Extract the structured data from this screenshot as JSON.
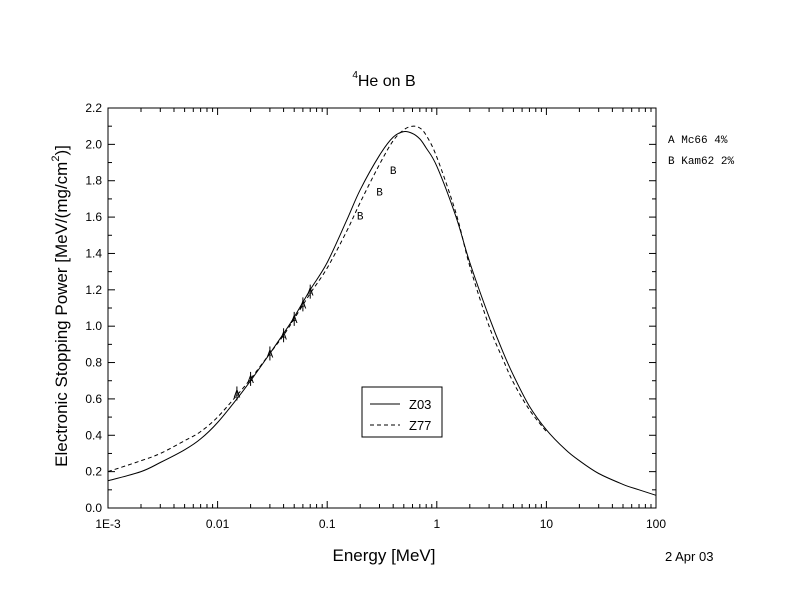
{
  "chart_data": {
    "type": "line",
    "title_sup": "4",
    "title_main": "He on B",
    "xlabel": "Energy [MeV]",
    "ylabel_main": "Electronic Stopping Power [MeV/(mg/cm",
    "ylabel_sup": "2",
    "ylabel_close": ")]",
    "x_scale": "log",
    "xlim": [
      0.001,
      100
    ],
    "ylim": [
      0.0,
      2.2
    ],
    "x_ticks": [
      {
        "value": 0.001,
        "label": "1E-3"
      },
      {
        "value": 0.01,
        "label": "0.01"
      },
      {
        "value": 0.1,
        "label": "0.1"
      },
      {
        "value": 1,
        "label": "1"
      },
      {
        "value": 10,
        "label": "10"
      },
      {
        "value": 100,
        "label": "100"
      }
    ],
    "y_ticks": [
      {
        "value": 0.0,
        "label": "0.0"
      },
      {
        "value": 0.2,
        "label": "0.2"
      },
      {
        "value": 0.4,
        "label": "0.4"
      },
      {
        "value": 0.6,
        "label": "0.6"
      },
      {
        "value": 0.8,
        "label": "0.8"
      },
      {
        "value": 1.0,
        "label": "1.0"
      },
      {
        "value": 1.2,
        "label": "1.2"
      },
      {
        "value": 1.4,
        "label": "1.4"
      },
      {
        "value": 1.6,
        "label": "1.6"
      },
      {
        "value": 1.8,
        "label": "1.8"
      },
      {
        "value": 2.0,
        "label": "2.0"
      },
      {
        "value": 2.2,
        "label": "2.2"
      }
    ],
    "grid": false,
    "legend_position": "bottom-center",
    "series": [
      {
        "name": "Z03",
        "style": "solid",
        "x": [
          0.001,
          0.002,
          0.003,
          0.005,
          0.007,
          0.01,
          0.015,
          0.02,
          0.03,
          0.04,
          0.05,
          0.07,
          0.1,
          0.15,
          0.2,
          0.3,
          0.4,
          0.5,
          0.6,
          0.7,
          0.8,
          1,
          1.5,
          2,
          3,
          4,
          5,
          7,
          10,
          15,
          20,
          30,
          50,
          70,
          100
        ],
        "y": [
          0.15,
          0.2,
          0.25,
          0.32,
          0.38,
          0.47,
          0.6,
          0.7,
          0.85,
          0.96,
          1.05,
          1.2,
          1.35,
          1.58,
          1.75,
          1.94,
          2.04,
          2.07,
          2.06,
          2.03,
          1.98,
          1.88,
          1.6,
          1.35,
          1.05,
          0.86,
          0.73,
          0.56,
          0.43,
          0.32,
          0.26,
          0.19,
          0.13,
          0.1,
          0.07
        ]
      },
      {
        "name": "Z77",
        "style": "dashed",
        "x": [
          0.001,
          0.002,
          0.003,
          0.005,
          0.007,
          0.01,
          0.015,
          0.02,
          0.03,
          0.04,
          0.05,
          0.07,
          0.1,
          0.15,
          0.2,
          0.3,
          0.4,
          0.5,
          0.6,
          0.7,
          0.8,
          1,
          1.5,
          2,
          3,
          4,
          5,
          7,
          10
        ],
        "y": [
          0.2,
          0.26,
          0.3,
          0.37,
          0.42,
          0.5,
          0.62,
          0.71,
          0.85,
          0.95,
          1.04,
          1.18,
          1.32,
          1.52,
          1.68,
          1.89,
          2.02,
          2.08,
          2.1,
          2.09,
          2.05,
          1.93,
          1.62,
          1.33,
          1.0,
          0.82,
          0.69,
          0.54,
          0.42
        ]
      }
    ],
    "data_points": [
      {
        "dataset": "A",
        "x": 0.015,
        "y": 0.63
      },
      {
        "dataset": "A",
        "x": 0.02,
        "y": 0.71
      },
      {
        "dataset": "A",
        "x": 0.03,
        "y": 0.85
      },
      {
        "dataset": "A",
        "x": 0.04,
        "y": 0.95
      },
      {
        "dataset": "A",
        "x": 0.05,
        "y": 1.04
      },
      {
        "dataset": "A",
        "x": 0.06,
        "y": 1.12
      },
      {
        "dataset": "A",
        "x": 0.07,
        "y": 1.19
      },
      {
        "dataset": "B",
        "x": 0.2,
        "y": 1.61
      },
      {
        "dataset": "B",
        "x": 0.3,
        "y": 1.74
      },
      {
        "dataset": "B",
        "x": 0.4,
        "y": 1.86
      }
    ],
    "dataset_key": [
      {
        "label": "A",
        "ref": "Mc66",
        "error": "4%"
      },
      {
        "label": "B",
        "ref": "Kam62",
        "error": "2%"
      }
    ],
    "date": "2 Apr 03"
  }
}
